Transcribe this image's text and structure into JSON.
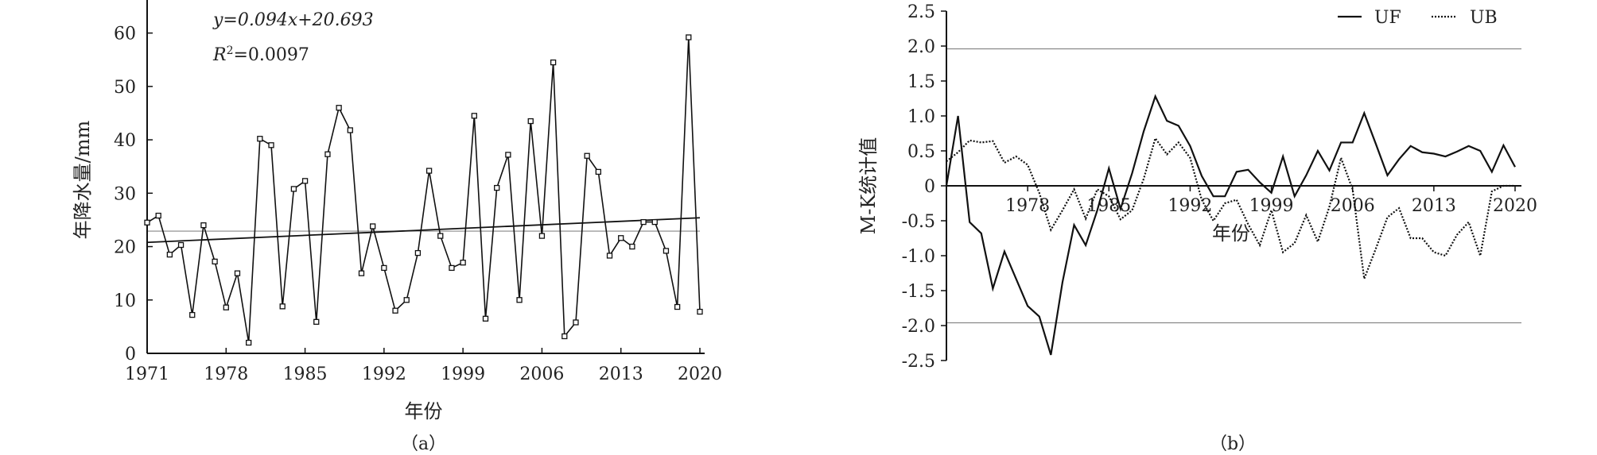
{
  "chart_data": [
    {
      "type": "line",
      "caption": "（a）",
      "xlabel": "年份",
      "ylabel": "年降水量/mm",
      "xlim": [
        1971,
        2020
      ],
      "ylim": [
        0,
        65
      ],
      "xticks": [
        1971,
        1978,
        1985,
        1992,
        1999,
        2006,
        2013,
        2020
      ],
      "yticks": [
        0,
        10,
        20,
        30,
        40,
        50,
        60
      ],
      "annotation": {
        "equation": "y=0.094x+20.693",
        "r2_prefix": "R",
        "r2_sup": "2",
        "r2_value": "=0.0097"
      },
      "trend": {
        "slope": 0.094,
        "intercept": 20.693
      },
      "mean": 22.9,
      "series": [
        {
          "x": [
            1971,
            1972,
            1973,
            1974,
            1975,
            1976,
            1977,
            1978,
            1979,
            1980,
            1981,
            1982,
            1983,
            1984,
            1985,
            1986,
            1987,
            1988,
            1989,
            1990,
            1991,
            1992,
            1993,
            1994,
            1995,
            1996,
            1997,
            1998,
            1999,
            2000,
            2001,
            2002,
            2003,
            2004,
            2005,
            2006,
            2007,
            2008,
            2009,
            2010,
            2011,
            2012,
            2013,
            2014,
            2015,
            2016,
            2017,
            2018,
            2019,
            2020
          ],
          "values": [
            24.5,
            25.8,
            18.5,
            20.3,
            7.2,
            24.0,
            17.2,
            8.6,
            15.0,
            2.0,
            40.2,
            39.0,
            8.8,
            30.8,
            32.3,
            5.9,
            37.3,
            46.0,
            41.8,
            15.0,
            23.8,
            16.0,
            8.0,
            10.0,
            18.8,
            34.2,
            22.0,
            16.0,
            17.0,
            44.5,
            6.5,
            31.0,
            37.2,
            10.0,
            43.5,
            22.0,
            54.5,
            3.2,
            5.8,
            37.0,
            34.0,
            18.3,
            21.6,
            20.0,
            24.6,
            24.6,
            19.2,
            8.7,
            59.2,
            7.8
          ]
        }
      ]
    },
    {
      "type": "line",
      "caption": "（b）",
      "xlabel": "年份",
      "ylabel": "M-K统计值",
      "xlim": [
        1971,
        2020
      ],
      "ylim": [
        -2.5,
        2.5
      ],
      "xticks": [
        1978,
        1985,
        1992,
        1999,
        2006,
        2013,
        2020
      ],
      "yticks": [
        -2.5,
        -2.0,
        -1.5,
        -1.0,
        -0.5,
        0,
        0.5,
        1.0,
        1.5,
        2.0,
        2.5
      ],
      "ytick_labels": [
        "-2.5",
        "-2.0",
        "-1.5",
        "-1.0",
        "-0.5",
        "0",
        "0.5",
        "1.0",
        "1.5",
        "2.0",
        "2.5"
      ],
      "critical": [
        1.96,
        -1.96
      ],
      "legend": "top-right",
      "series": [
        {
          "name": "UF",
          "x": [
            1971,
            1972,
            1973,
            1974,
            1975,
            1976,
            1977,
            1978,
            1979,
            1980,
            1981,
            1982,
            1983,
            1984,
            1985,
            1986,
            1987,
            1988,
            1989,
            1990,
            1991,
            1992,
            1993,
            1994,
            1995,
            1996,
            1997,
            1998,
            1999,
            2000,
            2001,
            2002,
            2003,
            2004,
            2005,
            2006,
            2007,
            2008,
            2009,
            2010,
            2011,
            2012,
            2013,
            2014,
            2015,
            2016,
            2017,
            2018,
            2019,
            2020
          ],
          "values": [
            0.0,
            1.0,
            -0.52,
            -0.68,
            -1.47,
            -0.94,
            -1.33,
            -1.72,
            -1.87,
            -2.42,
            -1.38,
            -0.56,
            -0.85,
            -0.35,
            0.25,
            -0.33,
            0.18,
            0.78,
            1.28,
            0.93,
            0.86,
            0.57,
            0.14,
            -0.15,
            -0.15,
            0.2,
            0.23,
            0.05,
            -0.1,
            0.42,
            -0.15,
            0.15,
            0.5,
            0.22,
            0.62,
            0.62,
            1.04,
            0.6,
            0.15,
            0.38,
            0.57,
            0.48,
            0.46,
            0.42,
            0.49,
            0.57,
            0.5,
            0.2,
            0.58,
            0.27
          ]
        },
        {
          "name": "UB",
          "x": [
            1971,
            1972,
            1973,
            1974,
            1975,
            1976,
            1977,
            1978,
            1979,
            1980,
            1981,
            1982,
            1983,
            1984,
            1985,
            1986,
            1987,
            1988,
            1989,
            1990,
            1991,
            1992,
            1993,
            1994,
            1995,
            1996,
            1997,
            1998,
            1999,
            2000,
            2001,
            2002,
            2003,
            2004,
            2005,
            2006,
            2007,
            2008,
            2009,
            2010,
            2011,
            2012,
            2013,
            2014,
            2015,
            2016,
            2017,
            2018,
            2019,
            2020
          ],
          "values": [
            0.35,
            0.48,
            0.65,
            0.62,
            0.64,
            0.33,
            0.42,
            0.3,
            -0.1,
            -0.63,
            -0.35,
            -0.05,
            -0.47,
            -0.05,
            -0.15,
            -0.48,
            -0.35,
            0.1,
            0.68,
            0.45,
            0.62,
            0.4,
            -0.2,
            -0.5,
            -0.25,
            -0.2,
            -0.55,
            -0.85,
            -0.35,
            -0.95,
            -0.82,
            -0.42,
            -0.8,
            -0.3,
            0.4,
            -0.05,
            -1.33,
            -0.9,
            -0.45,
            -0.32,
            -0.75,
            -0.75,
            -0.95,
            -1.0,
            -0.7,
            -0.52,
            -1.0,
            -0.08,
            0.0,
            0.0
          ]
        }
      ]
    }
  ]
}
